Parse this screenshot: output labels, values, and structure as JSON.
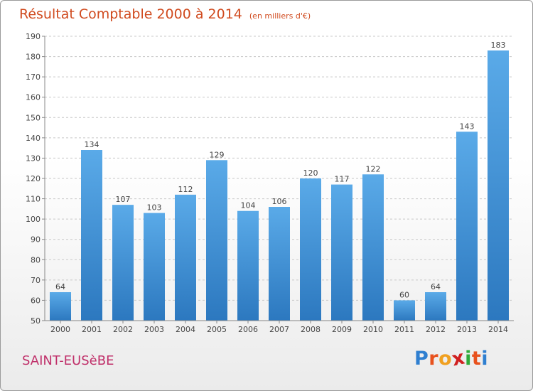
{
  "chart_data": {
    "type": "bar",
    "title": "Résultat Comptable 2000 à 2014",
    "unit_label": "(en milliers d'€)",
    "categories": [
      "2000",
      "2001",
      "2002",
      "2003",
      "2004",
      "2005",
      "2006",
      "2007",
      "2008",
      "2009",
      "2010",
      "2011",
      "2012",
      "2013",
      "2014"
    ],
    "values": [
      64,
      134,
      107,
      103,
      112,
      129,
      104,
      106,
      120,
      117,
      122,
      60,
      64,
      143,
      183
    ],
    "ylim": [
      50,
      190
    ],
    "yticks": [
      50,
      60,
      70,
      80,
      90,
      100,
      110,
      120,
      130,
      140,
      150,
      160,
      170,
      180,
      190
    ],
    "grid": true,
    "bar_color": "#3f8fd2"
  },
  "footer": {
    "place": "SAINT-EUSèBE",
    "logo_letters": [
      "P",
      "r",
      "o",
      "x",
      "i",
      "t",
      "i"
    ],
    "logo_colors": [
      "#2f7fd0",
      "#e8521e",
      "#f0a020",
      "#d02020",
      "#2faa3a",
      "#e8521e",
      "#2f7fd0"
    ]
  }
}
